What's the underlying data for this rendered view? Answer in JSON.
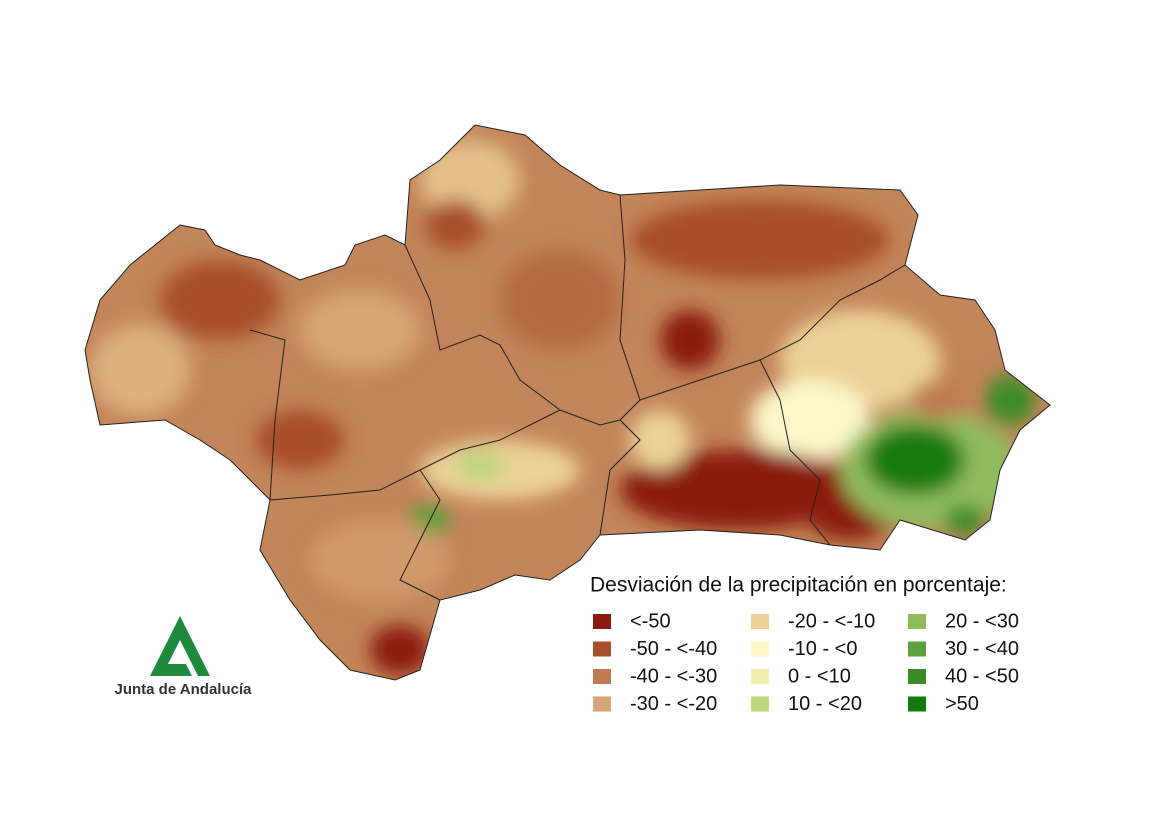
{
  "map": {
    "legend": {
      "title": "Desviación de la precipitación en porcentaje:",
      "items": [
        {
          "label": "<-50",
          "color": "#8b1a10"
        },
        {
          "label": "-50 - <-40",
          "color": "#a8502b"
        },
        {
          "label": "-40 - <-30",
          "color": "#bf7c52"
        },
        {
          "label": "-30 - <-20",
          "color": "#d6a676"
        },
        {
          "label": "-20 - <-10",
          "color": "#ecd296"
        },
        {
          "label": "-10 - <0",
          "color": "#fcf7c9"
        },
        {
          "label": "0 - <10",
          "color": "#efedb0"
        },
        {
          "label": "10 - <20",
          "color": "#bdd57b"
        },
        {
          "label": "20 - <30",
          "color": "#8fbb5b"
        },
        {
          "label": "30 - <40",
          "color": "#5ca13b"
        },
        {
          "label": "40 - <50",
          "color": "#3a8c26"
        },
        {
          "label": ">50",
          "color": "#127a10"
        }
      ]
    },
    "logo": {
      "text": "Junta de Andalucía"
    }
  }
}
